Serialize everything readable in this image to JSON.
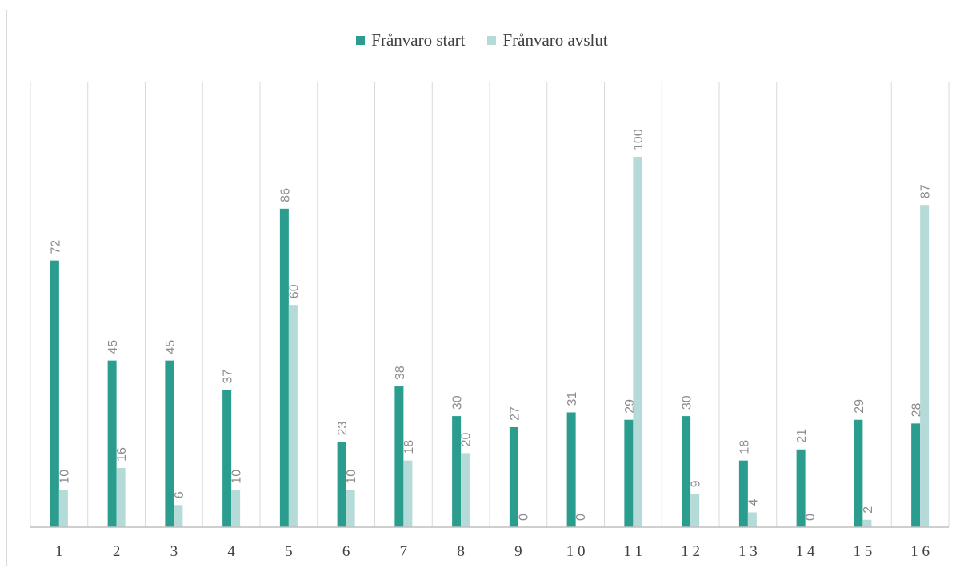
{
  "chart_data": {
    "type": "bar",
    "categories": [
      "1",
      "2",
      "3",
      "4",
      "5",
      "6",
      "7",
      "8",
      "9",
      "1 0",
      "1 1",
      "1 2",
      "1 3",
      "1 4",
      "1 5",
      "1 6"
    ],
    "series": [
      {
        "name": "Frånvaro start",
        "color": "#2a9d8f",
        "values": [
          72,
          45,
          45,
          37,
          86,
          23,
          38,
          30,
          27,
          31,
          29,
          30,
          18,
          21,
          29,
          28
        ]
      },
      {
        "name": "Frånvaro avslut",
        "color": "#b5dbd8",
        "values": [
          10,
          16,
          6,
          10,
          60,
          10,
          18,
          20,
          0,
          0,
          100,
          9,
          4,
          0,
          2,
          87
        ]
      }
    ],
    "title": "",
    "xlabel": "",
    "ylabel": "",
    "ylim": [
      0,
      110
    ],
    "grid": "vertical",
    "legend_position": "top-center",
    "data_labels": true,
    "data_label_rotation": "vertical"
  }
}
